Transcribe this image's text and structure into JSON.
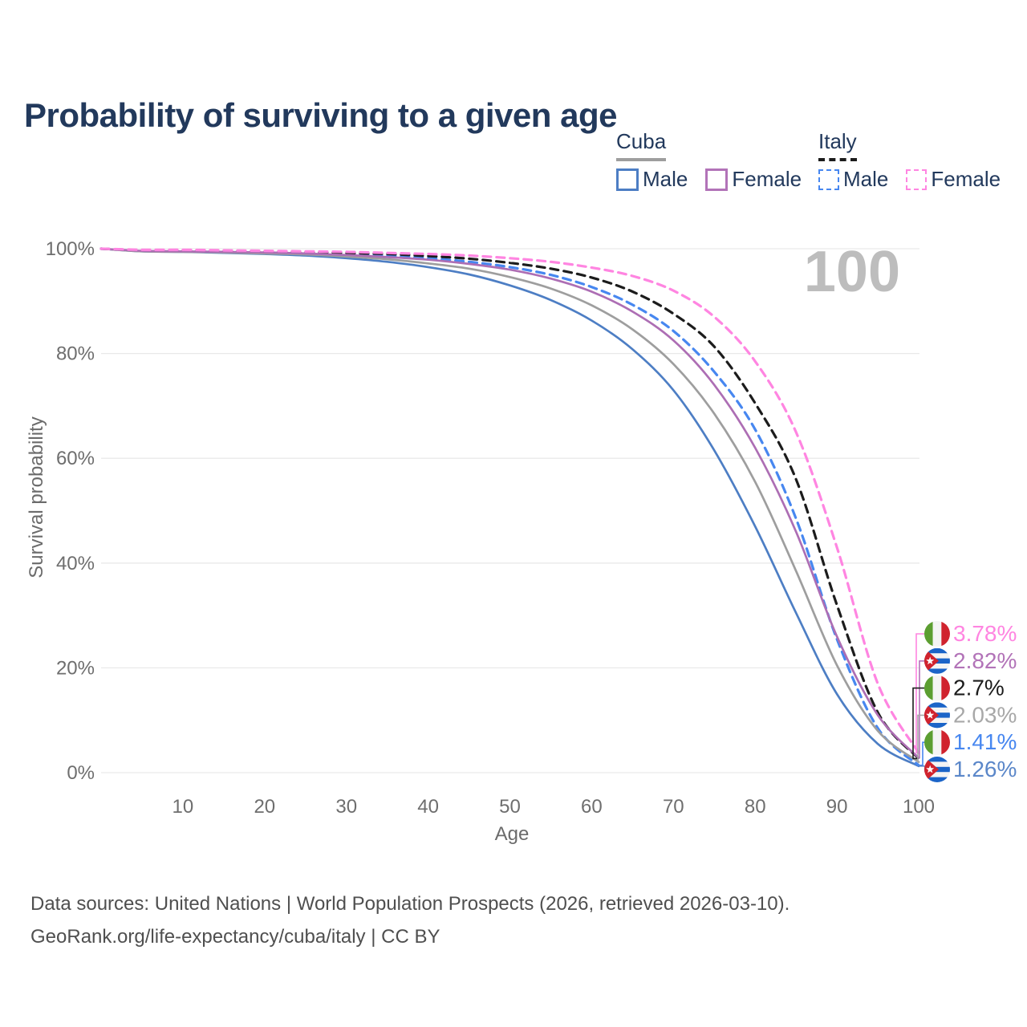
{
  "header": {
    "title": "Probability of surviving to a given age"
  },
  "legend": {
    "groups": [
      {
        "id": "cuba",
        "title": "Cuba",
        "line_style": "solid",
        "underline_color": "#9e9e9e",
        "items": [
          {
            "label": "Male",
            "color": "#4d7ec4"
          },
          {
            "label": "Female",
            "color": "#b273b8"
          }
        ]
      },
      {
        "id": "italy",
        "title": "Italy",
        "line_style": "dashed",
        "underline_color": "#1c1c1c",
        "items": [
          {
            "label": "Male",
            "color": "#4787f0"
          },
          {
            "label": "Female",
            "color": "#ff85e1"
          }
        ]
      }
    ]
  },
  "chart_data": {
    "type": "line",
    "title": "Probability of surviving to a given age",
    "xlabel": "Age",
    "ylabel": "Survival probability",
    "xlim": [
      0,
      100
    ],
    "ylim": [
      0,
      100
    ],
    "x_ticks": [
      10,
      20,
      30,
      40,
      50,
      60,
      70,
      80,
      90,
      100
    ],
    "y_ticks": [
      0,
      20,
      40,
      60,
      80,
      100
    ],
    "y_tick_suffix": "%",
    "grid": "horizontal",
    "legend_position": "top-right",
    "watermark": "100",
    "ages": [
      0,
      5,
      10,
      15,
      20,
      25,
      30,
      35,
      40,
      45,
      50,
      55,
      60,
      65,
      70,
      75,
      80,
      85,
      90,
      95,
      100
    ],
    "series": [
      {
        "id": "italy-female",
        "name": "Italy Female",
        "country": "Italy",
        "sex": "Female",
        "color": "#ff85e1",
        "label_color": "#ff85e1",
        "dashed": true,
        "flag": "italy",
        "end_label": "3.78%",
        "end_value": 3.78,
        "values": [
          100,
          99.8,
          99.8,
          99.7,
          99.6,
          99.5,
          99.4,
          99.2,
          99.0,
          98.7,
          98.2,
          97.5,
          96.4,
          94.8,
          92.0,
          87.0,
          78.5,
          65.0,
          43.0,
          17.0,
          3.78
        ]
      },
      {
        "id": "cuba-female",
        "name": "Cuba Female",
        "country": "Cuba",
        "sex": "Female",
        "color": "#ad6eb4",
        "label_color": "#b273b8",
        "dashed": false,
        "flag": "cuba",
        "end_label": "2.82%",
        "end_value": 2.82,
        "values": [
          100,
          99.6,
          99.5,
          99.4,
          99.3,
          99.1,
          98.8,
          98.4,
          97.9,
          97.1,
          96.0,
          94.3,
          91.8,
          88.0,
          82.5,
          74.0,
          62.0,
          46.0,
          26.0,
          11.0,
          2.82
        ]
      },
      {
        "id": "italy-both",
        "name": "Italy (both sexes)",
        "country": "Italy",
        "sex": "Both",
        "color": "#1c1c1c",
        "label_color": "#1c1c1c",
        "dashed": true,
        "flag": "italy",
        "end_label": "2.7%",
        "end_value": 2.7,
        "values": [
          100,
          99.7,
          99.7,
          99.6,
          99.5,
          99.4,
          99.2,
          99.0,
          98.6,
          98.1,
          97.3,
          96.2,
          94.5,
          91.8,
          87.6,
          81.3,
          70.5,
          56.0,
          32.0,
          11.5,
          2.7
        ]
      },
      {
        "id": "cuba-both",
        "name": "Cuba (both sexes)",
        "country": "Cuba",
        "sex": "Both",
        "color": "#9e9e9e",
        "label_color": "#a8a8a8",
        "dashed": false,
        "flag": "cuba",
        "end_label": "2.03%",
        "end_value": 2.03,
        "values": [
          100,
          99.5,
          99.4,
          99.3,
          99.1,
          98.9,
          98.5,
          98.0,
          97.2,
          96.2,
          94.6,
          92.4,
          89.2,
          84.6,
          78.0,
          68.5,
          55.5,
          38.5,
          20.5,
          8.0,
          2.03
        ]
      },
      {
        "id": "italy-male",
        "name": "Italy Male",
        "country": "Italy",
        "sex": "Male",
        "color": "#4787f0",
        "label_color": "#4787f0",
        "dashed": true,
        "flag": "italy",
        "end_label": "1.41%",
        "end_value": 1.41,
        "values": [
          100,
          99.7,
          99.6,
          99.5,
          99.4,
          99.2,
          99.0,
          98.7,
          98.2,
          97.5,
          96.5,
          95.0,
          92.7,
          89.3,
          84.3,
          76.5,
          65.5,
          48.5,
          25.5,
          8.5,
          1.41
        ]
      },
      {
        "id": "cuba-male",
        "name": "Cuba Male",
        "country": "Cuba",
        "sex": "Male",
        "color": "#4d7ec4",
        "label_color": "#5b87c9",
        "dashed": false,
        "flag": "cuba",
        "end_label": "1.26%",
        "end_value": 1.26,
        "values": [
          100,
          99.5,
          99.4,
          99.2,
          99.0,
          98.7,
          98.2,
          97.5,
          96.5,
          95.1,
          93.0,
          90.2,
          86.3,
          80.8,
          73.0,
          61.5,
          47.0,
          30.5,
          15.0,
          5.5,
          1.26
        ]
      }
    ],
    "flag_colors": {
      "italy_green": "#5c9e31",
      "italy_white": "#f4f4f4",
      "italy_red": "#d0232e",
      "cuba_blue": "#1b64c8",
      "cuba_white": "#f4f4f4",
      "cuba_red": "#d0232e"
    }
  },
  "footer": {
    "line1": "Data sources: United Nations | World Population Prospects (2026, retrieved 2026-03-10).",
    "line2": "GeoRank.org/life-expectancy/cuba/italy | CC BY"
  }
}
